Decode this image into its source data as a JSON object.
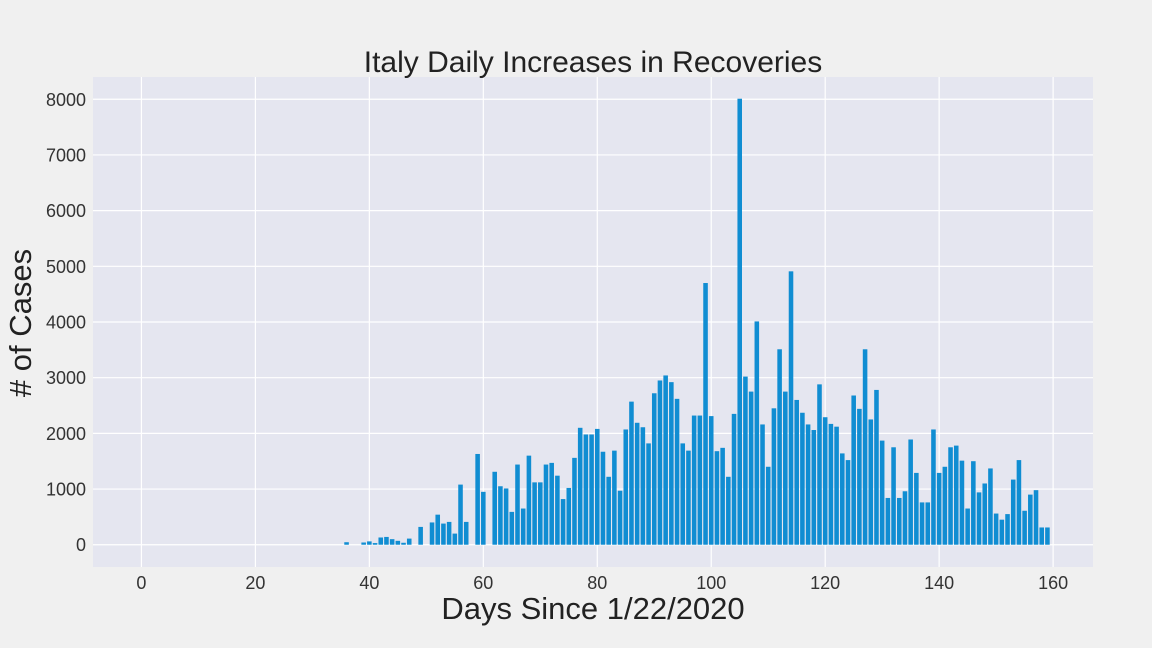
{
  "chart_data": {
    "type": "bar",
    "title": "Italy Daily Increases in Recoveries",
    "xlabel": "Days Since 1/22/2020",
    "ylabel": "# of Cases",
    "xlim": [
      -8.5,
      167
    ],
    "ylim": [
      -400,
      8400
    ],
    "xticks": [
      0,
      20,
      40,
      60,
      80,
      100,
      120,
      140,
      160
    ],
    "yticks": [
      0,
      1000,
      2000,
      3000,
      4000,
      5000,
      6000,
      7000,
      8000
    ],
    "grid": true,
    "legend": "none",
    "colors": {
      "bar": "#108dd2",
      "plot_bg": "#e5e6f0",
      "figure_bg": "#f0f0f0",
      "grid": "#ffffff"
    },
    "x_start": 0,
    "values": [
      0,
      0,
      0,
      0,
      0,
      0,
      0,
      0,
      0,
      0,
      0,
      0,
      0,
      0,
      0,
      0,
      0,
      0,
      0,
      0,
      0,
      0,
      0,
      0,
      0,
      0,
      0,
      0,
      0,
      0,
      0,
      0,
      0,
      0,
      0,
      0,
      45,
      0,
      0,
      40,
      60,
      30,
      130,
      140,
      100,
      70,
      35,
      110,
      0,
      320,
      0,
      400,
      540,
      380,
      410,
      200,
      1080,
      410,
      0,
      1630,
      950,
      0,
      1310,
      1050,
      1010,
      590,
      1440,
      650,
      1600,
      1120,
      1120,
      1440,
      1470,
      1240,
      820,
      1020,
      1560,
      2100,
      1980,
      1980,
      2080,
      1670,
      1220,
      1690,
      970,
      2070,
      2570,
      2190,
      2110,
      1820,
      2720,
      2950,
      3040,
      2920,
      2620,
      1820,
      1690,
      2320,
      2320,
      4700,
      2310,
      1680,
      1740,
      1220,
      2350,
      8010,
      3020,
      2750,
      4010,
      2160,
      1400,
      2450,
      3510,
      2750,
      4910,
      2600,
      2370,
      2160,
      2060,
      2880,
      2290,
      2170,
      2120,
      1640,
      1520,
      2680,
      2440,
      3510,
      2250,
      2780,
      1870,
      840,
      1750,
      840,
      960,
      1890,
      1290,
      760,
      760,
      2070,
      1290,
      1400,
      1750,
      1780,
      1510,
      650,
      1500,
      940,
      1100,
      1370,
      560,
      450,
      550,
      1170,
      1520,
      610,
      900,
      980,
      310,
      310
    ]
  }
}
